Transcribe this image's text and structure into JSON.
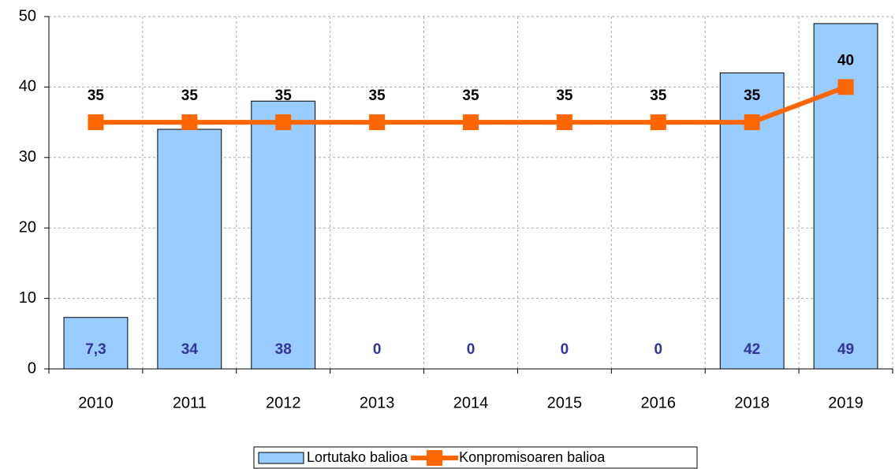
{
  "chart_data": {
    "type": "bar",
    "categories": [
      "2010",
      "2011",
      "2012",
      "2013",
      "2014",
      "2015",
      "2016",
      "2018",
      "2019"
    ],
    "series": [
      {
        "name": "Lortutako balioa",
        "type": "bar",
        "color": "#99ccff",
        "values": [
          7.3,
          34,
          38,
          0,
          0,
          0,
          0,
          42,
          49
        ],
        "value_labels": [
          "7,3",
          "34",
          "38",
          "0",
          "0",
          "0",
          "0",
          "42",
          "49"
        ]
      },
      {
        "name": "Konpromisoaren balioa",
        "type": "line",
        "color": "#ff6600",
        "values": [
          35,
          35,
          35,
          35,
          35,
          35,
          35,
          35,
          40
        ]
      }
    ],
    "ylim": [
      0,
      50
    ],
    "yticks": [
      0,
      10,
      20,
      30,
      40,
      50
    ],
    "grid": true
  }
}
